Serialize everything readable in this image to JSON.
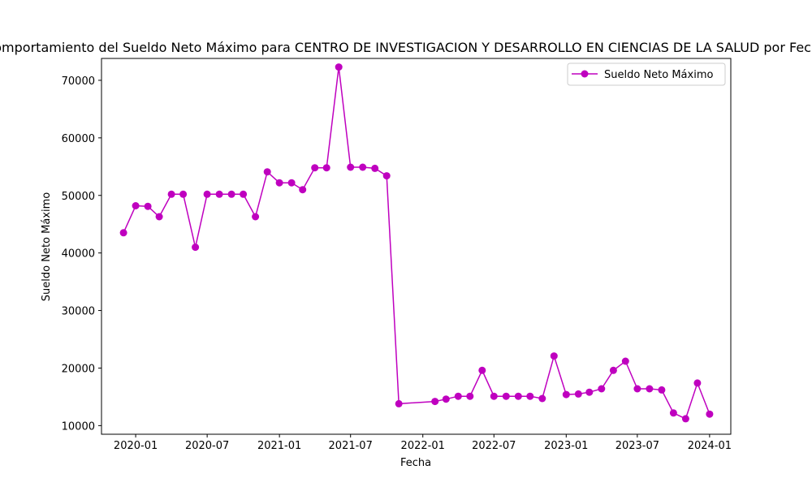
{
  "chart_data": {
    "type": "line",
    "title": "Comportamiento del Sueldo Neto Máximo para CENTRO DE INVESTIGACION Y DESARROLLO EN CIENCIAS DE LA SALUD por Fecha",
    "xlabel": "Fecha",
    "ylabel": "Sueldo Neto Máximo",
    "xlim": [
      "2019-10-06",
      "2024-02-24"
    ],
    "ylim": [
      8500,
      73800
    ],
    "x_ticks": [
      "2020-01",
      "2020-07",
      "2021-01",
      "2021-07",
      "2022-01",
      "2022-07",
      "2023-01",
      "2023-07",
      "2024-01"
    ],
    "y_ticks": [
      10000,
      20000,
      30000,
      40000,
      50000,
      60000,
      70000
    ],
    "grid": false,
    "legend_position": "top-right",
    "color": "#bf00bf",
    "marker": "circle",
    "series": [
      {
        "name": "Sueldo Neto Máximo",
        "x": [
          "2019-12-01",
          "2020-01-01",
          "2020-02-01",
          "2020-03-01",
          "2020-04-01",
          "2020-05-01",
          "2020-06-01",
          "2020-07-01",
          "2020-08-01",
          "2020-09-01",
          "2020-10-01",
          "2020-11-01",
          "2020-12-01",
          "2021-01-01",
          "2021-02-01",
          "2021-03-01",
          "2021-04-01",
          "2021-05-01",
          "2021-06-01",
          "2021-07-01",
          "2021-08-01",
          "2021-09-01",
          "2021-10-01",
          "2021-11-01",
          "2022-02-01",
          "2022-03-01",
          "2022-04-01",
          "2022-05-01",
          "2022-06-01",
          "2022-07-01",
          "2022-08-01",
          "2022-09-01",
          "2022-10-01",
          "2022-11-01",
          "2022-12-01",
          "2023-01-01",
          "2023-02-01",
          "2023-03-01",
          "2023-04-01",
          "2023-05-01",
          "2023-06-01",
          "2023-07-01",
          "2023-08-01",
          "2023-09-01",
          "2023-10-01",
          "2023-11-01",
          "2023-12-01",
          "2024-01-01"
        ],
        "values": [
          43500,
          48200,
          48100,
          46300,
          50200,
          50200,
          41000,
          50200,
          50200,
          50200,
          50200,
          46300,
          54100,
          52200,
          52200,
          51000,
          54800,
          54800,
          72300,
          54900,
          54900,
          54700,
          53400,
          13800,
          14200,
          14600,
          15100,
          15100,
          19600,
          15100,
          15100,
          15100,
          15100,
          14700,
          22100,
          15400,
          15500,
          15800,
          16400,
          19600,
          21200,
          16400,
          16400,
          16200,
          12200,
          11200,
          17400,
          12000
        ]
      }
    ]
  }
}
